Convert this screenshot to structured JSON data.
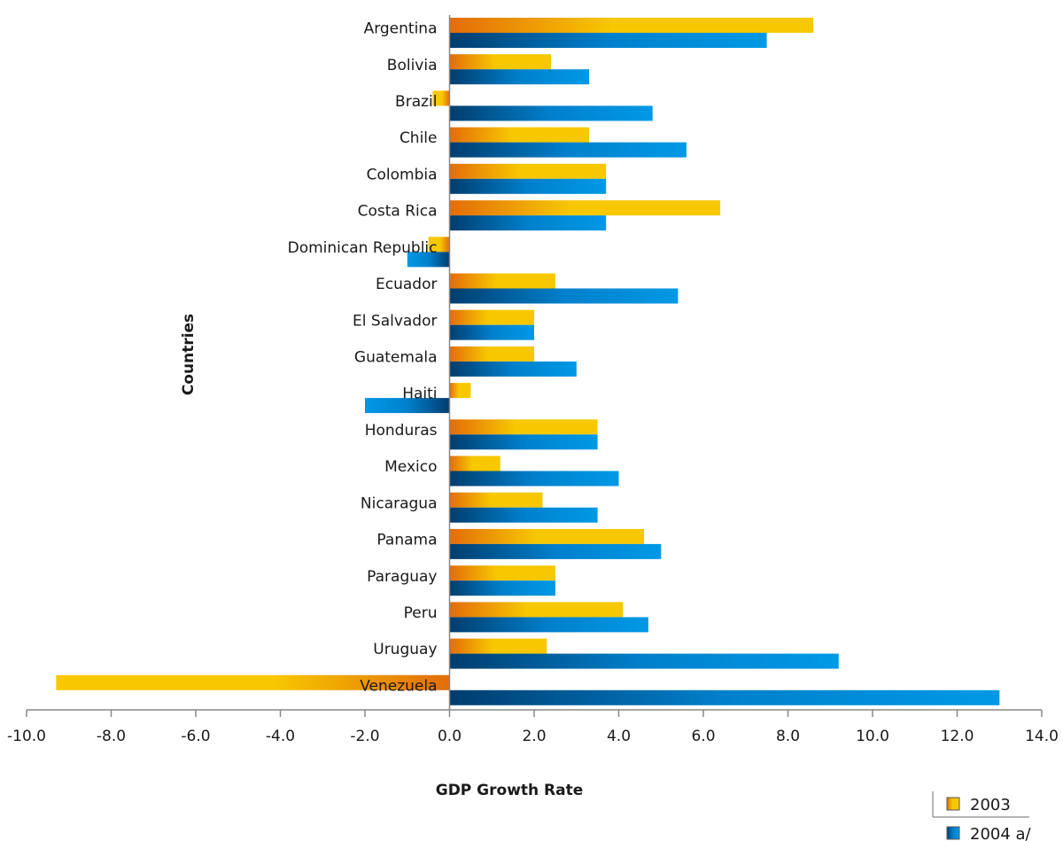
{
  "chart_data": {
    "type": "bar",
    "orientation": "horizontal",
    "categories": [
      "Argentina",
      "Bolivia",
      "Brazil",
      "Chile",
      "Colombia",
      "Costa Rica",
      "Dominican Republic",
      "Ecuador",
      "El Salvador",
      "Guatemala",
      "Haiti",
      "Honduras",
      "Mexico",
      "Nicaragua",
      "Panama",
      "Paraguay",
      "Peru",
      "Uruguay",
      "Venezuela"
    ],
    "series": [
      {
        "name": "2003",
        "values": [
          8.6,
          2.4,
          -0.4,
          3.3,
          3.7,
          6.4,
          -0.5,
          2.5,
          2.0,
          2.0,
          0.5,
          3.5,
          1.2,
          2.2,
          4.6,
          2.5,
          4.1,
          2.3,
          -9.3
        ],
        "color_start": "#e36c0a",
        "color_end": "#f7c800"
      },
      {
        "name": "2004 a/",
        "values": [
          7.5,
          3.3,
          4.8,
          5.6,
          3.7,
          3.7,
          -1.0,
          5.4,
          2.0,
          3.0,
          -2.0,
          3.5,
          4.0,
          3.5,
          5.0,
          2.5,
          4.7,
          9.2,
          13.0
        ],
        "color_start": "#003d6e",
        "color_end": "#0099e6"
      }
    ],
    "xlim": [
      -10,
      14
    ],
    "x_ticks": [
      "-10.0",
      "-8.0",
      "-6.0",
      "-4.0",
      "-2.0",
      "0.0",
      "2.0",
      "4.0",
      "6.0",
      "8.0",
      "10.0",
      "12.0",
      "14.0"
    ],
    "xlabel": "GDP Growth Rate",
    "ylabel": "Countries",
    "legend_position": "bottom-right",
    "grid": false
  }
}
